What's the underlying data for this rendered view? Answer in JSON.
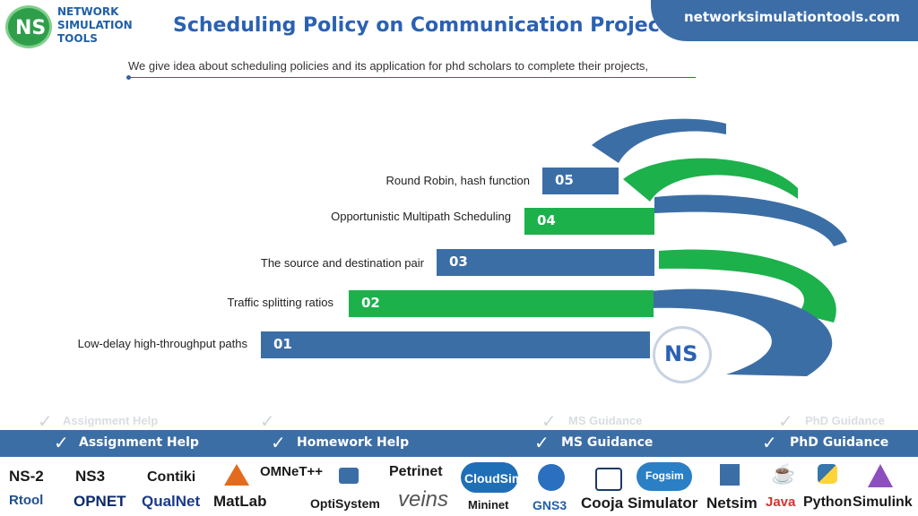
{
  "header": {
    "logo_initials": "NS",
    "logo_lines": [
      "NETWORK",
      "SIMULATION",
      "TOOLS"
    ],
    "title": "Scheduling Policy on Communication Project",
    "site": "networksimulationtools.com",
    "subtitle": "We give idea about scheduling policies and its application for phd scholars to complete their projects,"
  },
  "steps": [
    {
      "number": "05",
      "label": "Round Robin, hash function",
      "color": "#3c6ea6"
    },
    {
      "number": "04",
      "label": "Opportunistic Multipath Scheduling",
      "color": "#1db14b"
    },
    {
      "number": "03",
      "label": "The source and destination pair",
      "color": "#3c6ea6"
    },
    {
      "number": "02",
      "label": "Traffic splitting ratios",
      "color": "#1db14b"
    },
    {
      "number": "01",
      "label": "Low-delay high-throughput paths",
      "color": "#3c6ea6"
    }
  ],
  "center_badge": "NS",
  "services": [
    {
      "label": "Assignment Help",
      "icon": "check-icon"
    },
    {
      "label": "Homework Help",
      "icon": "check-icon"
    },
    {
      "label": "MS  Guidance",
      "icon": "check-icon"
    },
    {
      "label": "PhD  Guidance",
      "icon": "check-icon"
    }
  ],
  "ghost_services": [
    "Assignment Help",
    "MS  Guidance",
    "PhD  Guidance"
  ],
  "tools_row1": [
    "NS-2",
    "NS3",
    "Contiki",
    "OMNeT++",
    "Petrinet",
    "Fogsim"
  ],
  "tools_row2": [
    "Rtool",
    "OPNET",
    "QualNet",
    "MatLab",
    "OptiSystem",
    "veins",
    "CloudSim",
    "Mininet",
    "GNS3",
    "Cooja Simulator",
    "Netsim",
    "Java",
    "Python",
    "Simulink"
  ],
  "colors": {
    "blue": "#3c6ea6",
    "green": "#1db14b",
    "title_blue": "#2b61b2"
  }
}
